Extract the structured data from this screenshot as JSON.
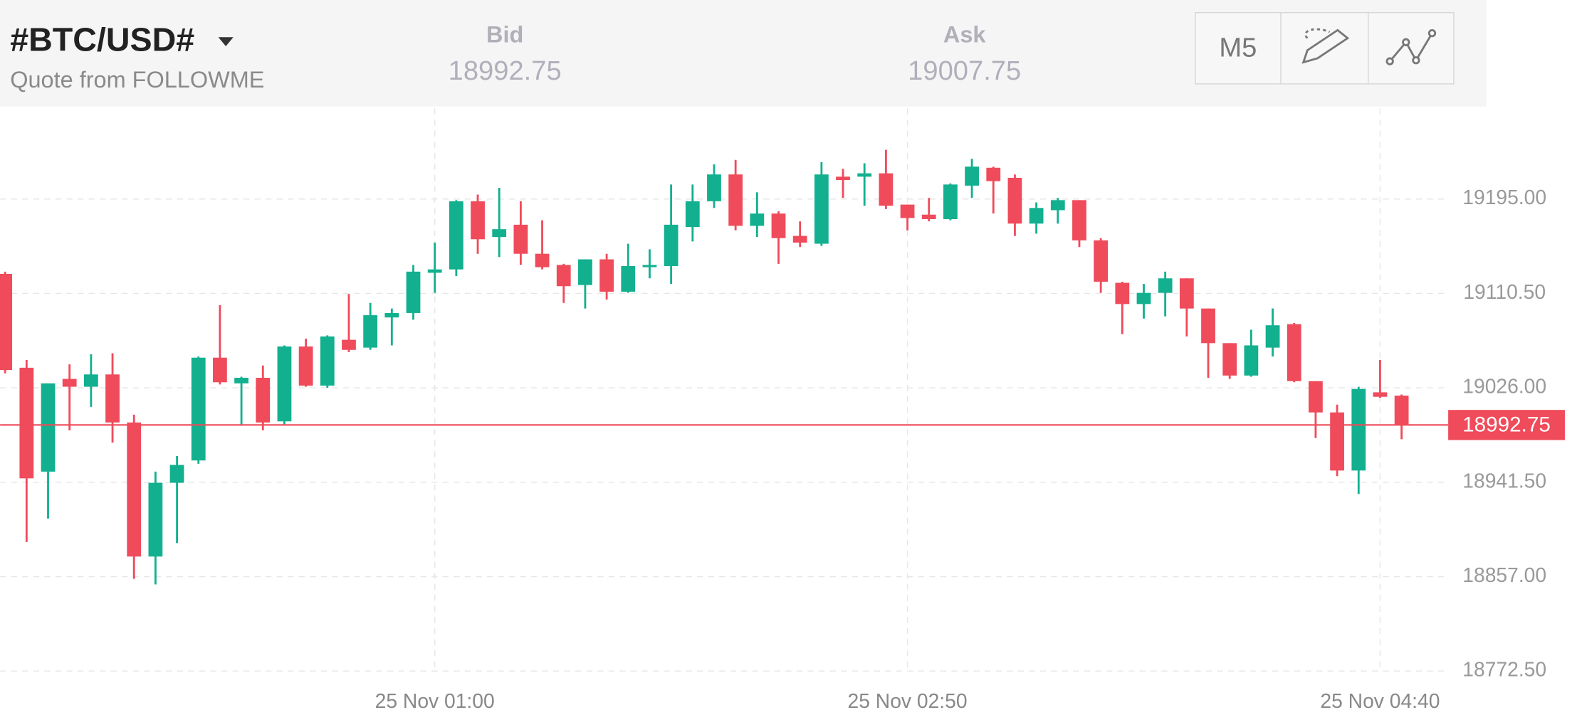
{
  "header": {
    "title": "#BTC/USD#",
    "subtitle": "Quote from FOLLOWME",
    "bid_label": "Bid",
    "bid": 18992.75,
    "ask_label": "Ask",
    "ask": 19007.75,
    "timeframe": "M5"
  },
  "chart_data": {
    "type": "candlestick",
    "up_color": "#12b08f",
    "down_color": "#ef4b5b",
    "grid": true,
    "categories": [
      null,
      null,
      null,
      null,
      null,
      null,
      null,
      null,
      null,
      null,
      null,
      null,
      null,
      null,
      null,
      null,
      null,
      null,
      null,
      null,
      "25 Nov 01:00",
      null,
      null,
      null,
      null,
      null,
      null,
      null,
      null,
      null,
      null,
      null,
      null,
      null,
      null,
      null,
      null,
      null,
      null,
      null,
      null,
      null,
      "25 Nov 02:50",
      null,
      null,
      null,
      null,
      null,
      null,
      null,
      null,
      null,
      null,
      null,
      null,
      null,
      null,
      null,
      null,
      null,
      null,
      null,
      null,
      null,
      "25 Nov 04:40",
      null
    ],
    "open": [
      19128,
      19044,
      18951,
      19034,
      19027,
      19038,
      18995,
      18875,
      18941,
      18961,
      19053,
      19030,
      19035,
      18996,
      19063,
      19028,
      19069,
      19062,
      19089,
      19093,
      19129,
      19132,
      19193,
      19161,
      19172,
      19146,
      19136,
      19118,
      19141,
      19112,
      19134,
      19135,
      19170,
      19193,
      19217,
      19171,
      19182,
      19162,
      19155,
      19215,
      19215,
      19218,
      19190,
      19181,
      19177,
      19207,
      19223,
      19214,
      19173,
      19185,
      19194,
      19158,
      19120,
      19101,
      19111,
      19124,
      19097,
      19066,
      19037,
      19062,
      19083,
      19032,
      19004,
      18952,
      19022,
      19019
    ],
    "high": [
      19130,
      19051,
      19030,
      19047,
      19056,
      19057,
      19002,
      18951,
      18965,
      19054,
      19100,
      19036,
      19046,
      19064,
      19070,
      19073,
      19110,
      19102,
      19097,
      19136,
      19156,
      19194,
      19199,
      19205,
      19193,
      19176,
      19137,
      19141,
      19146,
      19155,
      19150,
      19208,
      19208,
      19226,
      19230,
      19201,
      19184,
      19175,
      19228,
      19222,
      19227,
      19239,
      19190,
      19196,
      19209,
      19231,
      19224,
      19217,
      19192,
      19196,
      19194,
      19160,
      19121,
      19119,
      19130,
      19124,
      19097,
      19066,
      19078,
      19097,
      19084,
      19032,
      19011,
      19027,
      19051,
      19020
    ],
    "low": [
      19039,
      18888,
      18909,
      18988,
      19009,
      18977,
      18855,
      18850,
      18887,
      18958,
      19029,
      18992,
      18988,
      18993,
      19027,
      19026,
      19058,
      19060,
      19064,
      19087,
      19111,
      19126,
      19146,
      19143,
      19136,
      19132,
      19102,
      19097,
      19105,
      19111,
      19124,
      19119,
      19157,
      19187,
      19167,
      19161,
      19137,
      19152,
      19153,
      19196,
      19189,
      19186,
      19167,
      19175,
      19176,
      19196,
      19182,
      19162,
      19164,
      19173,
      19152,
      19111,
      19074,
      19088,
      19090,
      19072,
      19035,
      19034,
      19036,
      19054,
      19031,
      18981,
      18947,
      18931,
      19017,
      18980
    ],
    "close": [
      19042,
      18945,
      19030,
      19027,
      19038,
      18995,
      18875,
      18941,
      18957,
      19053,
      19031,
      19035,
      18995,
      19063,
      19028,
      19072,
      19060,
      19091,
      19093,
      19130,
      19132,
      19193,
      19159,
      19168,
      19146,
      19134,
      19117,
      19141,
      19112,
      19135,
      19136,
      19172,
      19193,
      19217,
      19171,
      19182,
      19160,
      19156,
      19217,
      19212,
      19218,
      19189,
      19178,
      19177,
      19208,
      19224,
      19211,
      19173,
      19187,
      19194,
      19158,
      19121,
      19101,
      19111,
      19124,
      19097,
      19066,
      19037,
      19064,
      19082,
      19032,
      19004,
      18952,
      19025,
      19018,
      18992.75
    ],
    "current_price": 18992.75,
    "ylim": [
      18757,
      19276
    ],
    "yticks": [
      {
        "value": 18772.5,
        "label": "18772.50"
      },
      {
        "value": 18857,
        "label": "18857.00"
      },
      {
        "value": 18941.5,
        "label": "18941.50"
      },
      {
        "value": 19026,
        "label": "19026.00"
      },
      {
        "value": 19110.5,
        "label": "19110.50"
      },
      {
        "value": 19195,
        "label": "19195.00"
      }
    ]
  }
}
